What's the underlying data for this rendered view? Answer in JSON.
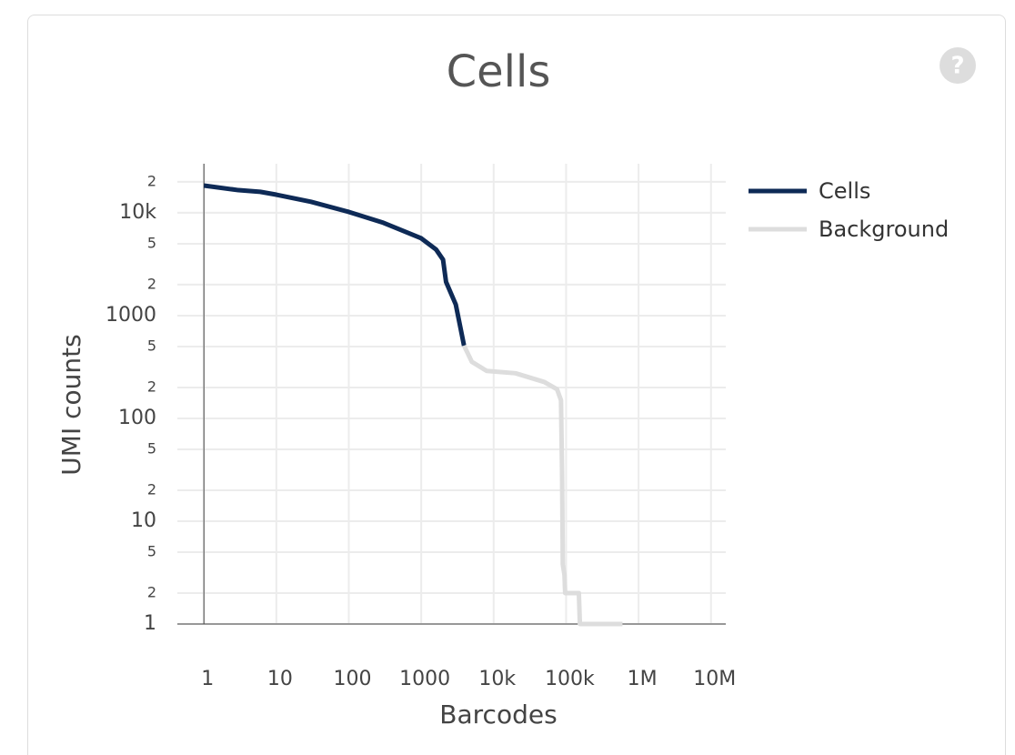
{
  "chart_data": {
    "type": "line",
    "title": "Cells",
    "xlabel": "Barcodes",
    "ylabel": "UMI counts",
    "xscale": "log",
    "yscale": "log",
    "xlim": [
      0.43,
      16000000
    ],
    "ylim": [
      1,
      30000
    ],
    "xticks": [
      1,
      10,
      100,
      1000,
      {
        "value": 10000,
        "label": "10k"
      },
      {
        "value": 100000,
        "label": "100k"
      },
      {
        "value": 1000000,
        "label": "1M"
      },
      {
        "value": 10000000,
        "label": "10M"
      }
    ],
    "yticks": [
      1,
      2,
      5,
      10,
      {
        "value": 20,
        "label": "2"
      },
      {
        "value": 50,
        "label": "5"
      },
      100,
      {
        "value": 200,
        "label": "2"
      },
      {
        "value": 500,
        "label": "5"
      },
      1000,
      {
        "value": 2000,
        "label": "2"
      },
      {
        "value": 5000,
        "label": "5"
      },
      {
        "value": 10000,
        "label": "10k"
      },
      {
        "value": 20000,
        "label": "2"
      }
    ],
    "grid": true,
    "legend": "right",
    "series": [
      {
        "name": "Cells",
        "color": "#0e2a56",
        "x": [
          1,
          3,
          6,
          10,
          30,
          100,
          300,
          1000,
          1600,
          2000,
          2200,
          3000,
          3900
        ],
        "values": [
          18400,
          16600,
          16000,
          15000,
          12800,
          10200,
          8000,
          5650,
          4400,
          3500,
          2130,
          1280,
          510
        ]
      },
      {
        "name": "Background",
        "color": "#dddddd",
        "x": [
          3900,
          5000,
          8000,
          20000,
          50000,
          75000,
          85000,
          88000,
          90000,
          95000,
          97000,
          150000,
          155000,
          600000
        ],
        "values": [
          510,
          355,
          290,
          275,
          226,
          192,
          150,
          29,
          3.8,
          3,
          2,
          2,
          1,
          1
        ]
      }
    ]
  },
  "help_icon": "?"
}
